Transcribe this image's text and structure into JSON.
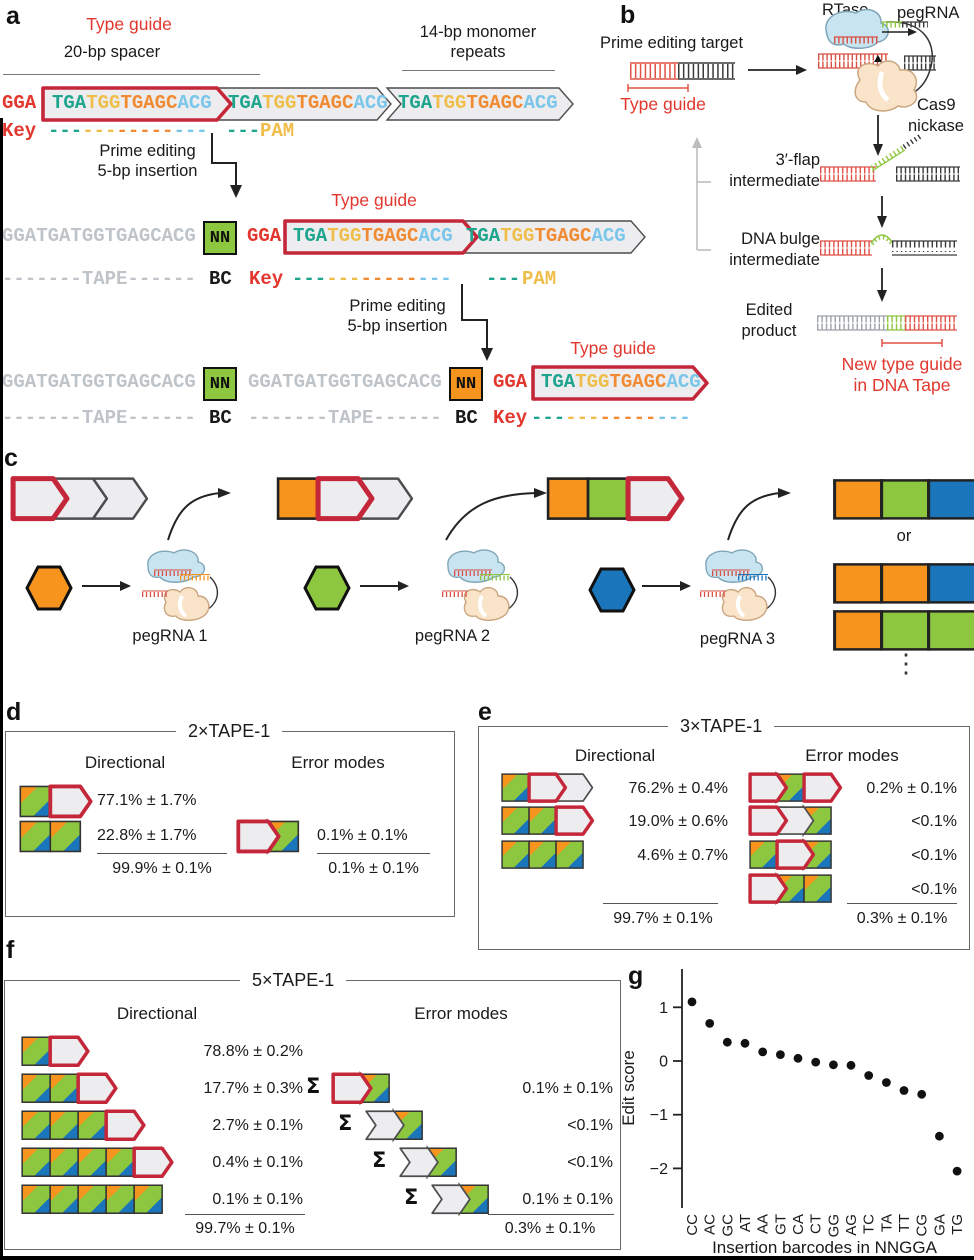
{
  "colors": {
    "red_label": "#E2372E",
    "red_stroke": "#C4273A",
    "orange": "#F7941E",
    "green": "#8DC63F",
    "blue": "#1B75BB",
    "teal": "#1FA48E",
    "gold": "#EFBE4A",
    "seq_orange": "#F08A33",
    "lightblue": "#79C6EA",
    "gray_seq": "#BFC4C9",
    "chevron_fill": "#EDEDEF"
  },
  "panel_a": {
    "label": "a",
    "type_guide": "Type guide",
    "spacer": "20-bp spacer",
    "monomer1": "14-bp monomer",
    "monomer2": "repeats",
    "gga": "GGA",
    "seq": {
      "p1": "TGA",
      "p2": "TGG",
      "p3": "TGAGC",
      "p4": "ACG"
    },
    "prime1": "Prime editing",
    "prime2": "5-bp insertion",
    "tape_seq": "GGATGATGGTGAGCACG",
    "nn": "NN",
    "tape_dash": "-------TAPE------",
    "bc": "BC",
    "key": "Key",
    "pam": "PAM",
    "d3": "---",
    "d5": "-----"
  },
  "panel_b": {
    "label": "b",
    "target": "Prime editing target",
    "type_guide": "Type guide",
    "rtase": "RTase",
    "pegrna": "pegRNA",
    "cas9a": "Cas9",
    "cas9b": "nickase",
    "flap_a": "3′-flap",
    "flap_b": "intermediate",
    "bulge_a": "DNA bulge",
    "bulge_b": "intermediate",
    "edit_a": "Edited",
    "edit_b": "product",
    "newg_a": "New type guide",
    "newg_b": "in DNA Tape"
  },
  "panel_c": {
    "label": "c",
    "or": "or",
    "dots": "⋮",
    "peg1": "pegRNA 1",
    "peg2": "pegRNA 2",
    "peg3": "pegRNA 3",
    "states": [
      {
        "cells": [
          "guide",
          "chev",
          "chev"
        ]
      },
      {
        "cells": [
          "orange",
          "guide",
          "chev"
        ]
      },
      {
        "cells": [
          "orange",
          "green",
          "guide"
        ]
      }
    ],
    "outcomes": [
      {
        "cells": [
          "orange",
          "green",
          "blue"
        ]
      },
      {
        "cells": [
          "orange",
          "orange",
          "blue"
        ]
      },
      {
        "cells": [
          "orange",
          "green",
          "green"
        ]
      }
    ]
  },
  "panel_d": {
    "label": "d",
    "title": "2×TAPE-1",
    "dir_header": "Directional",
    "err_header": "Error modes",
    "dir_rows": [
      {
        "cells": [
          "multi",
          "guide"
        ],
        "value": "77.1% ± 1.7%"
      },
      {
        "cells": [
          "multi",
          "multi"
        ],
        "value": "22.8% ± 1.7%"
      }
    ],
    "dir_total": "99.9% ± 0.1%",
    "err_rows": [
      {
        "cells": [
          "guide",
          "multiN"
        ],
        "value": "0.1% ± 0.1%"
      }
    ],
    "err_total": "0.1% ± 0.1%"
  },
  "panel_e": {
    "label": "e",
    "title": "3×TAPE-1",
    "dir_header": "Directional",
    "err_header": "Error modes",
    "dir_rows": [
      {
        "cells": [
          "multi",
          "guide",
          "chev"
        ],
        "value": "76.2% ± 0.4%"
      },
      {
        "cells": [
          "multi",
          "multi",
          "guide"
        ],
        "value": "19.0% ± 0.6%"
      },
      {
        "cells": [
          "multi",
          "multi",
          "multi"
        ],
        "value": "4.6% ± 0.7%"
      }
    ],
    "dir_total": "99.7% ± 0.1%",
    "err_rows": [
      {
        "cells": [
          "guide",
          "multiN",
          "guide"
        ],
        "value": "0.2% ± 0.1%"
      },
      {
        "cells": [
          "guide",
          "chev",
          "multiN"
        ],
        "value": "<0.1%"
      },
      {
        "cells": [
          "multi",
          "guide",
          "multiN"
        ],
        "value": "<0.1%"
      },
      {
        "cells": [
          "guide",
          "multiN",
          "multi"
        ],
        "value": "<0.1%"
      }
    ],
    "err_total": "0.3% ± 0.1%"
  },
  "panel_f": {
    "label": "f",
    "title": "5×TAPE-1",
    "dir_header": "Directional",
    "err_header": "Error modes",
    "sigma": "Σ",
    "dir_rows": [
      {
        "cells": [
          "multi",
          "guide"
        ],
        "value": "78.8% ± 0.2%"
      },
      {
        "cells": [
          "multi",
          "multi",
          "guide"
        ],
        "value": "17.7% ± 0.3%"
      },
      {
        "cells": [
          "multi",
          "multi",
          "multi",
          "guide"
        ],
        "value": "2.7% ± 0.1%"
      },
      {
        "cells": [
          "multi",
          "multi",
          "multi",
          "multi",
          "guide"
        ],
        "value": "0.4% ± 0.1%"
      },
      {
        "cells": [
          "multi",
          "multi",
          "multi",
          "multi",
          "multi"
        ],
        "value": "0.1% ± 0.1%"
      }
    ],
    "dir_total": "99.7% ± 0.1%",
    "err_rows": [
      {
        "cells": [
          "guide",
          "multiN"
        ],
        "value": "0.1% ± 0.1%"
      },
      {
        "cells": [
          "chev",
          "multiN"
        ],
        "value": "<0.1%"
      },
      {
        "cells": [
          "chev",
          "multiN"
        ],
        "value": "<0.1%"
      },
      {
        "cells": [
          "chev",
          "multiN"
        ],
        "value": "0.1% ± 0.1%"
      }
    ],
    "err_total": "0.3% ± 0.1%"
  },
  "panel_g": {
    "label": "g"
  },
  "chart_data": {
    "type": "scatter",
    "title": "",
    "xlabel": "Insertion barcodes in NNGGA",
    "ylabel": "Edit score",
    "categories": [
      "CC",
      "AC",
      "GC",
      "AT",
      "AA",
      "GT",
      "CA",
      "CT",
      "GG",
      "AG",
      "TC",
      "TA",
      "TT",
      "CG",
      "GA",
      "TG"
    ],
    "values": [
      1.1,
      0.7,
      0.35,
      0.33,
      0.17,
      0.12,
      0.05,
      -0.02,
      -0.07,
      -0.08,
      -0.27,
      -0.4,
      -0.55,
      -0.62,
      -1.4,
      -2.05
    ],
    "ylim": [
      -2.6,
      1.6
    ],
    "yticks": [
      1,
      0,
      -1,
      -2
    ],
    "grid": false,
    "legend": false,
    "marker": "point",
    "marker_color": "#111111"
  }
}
